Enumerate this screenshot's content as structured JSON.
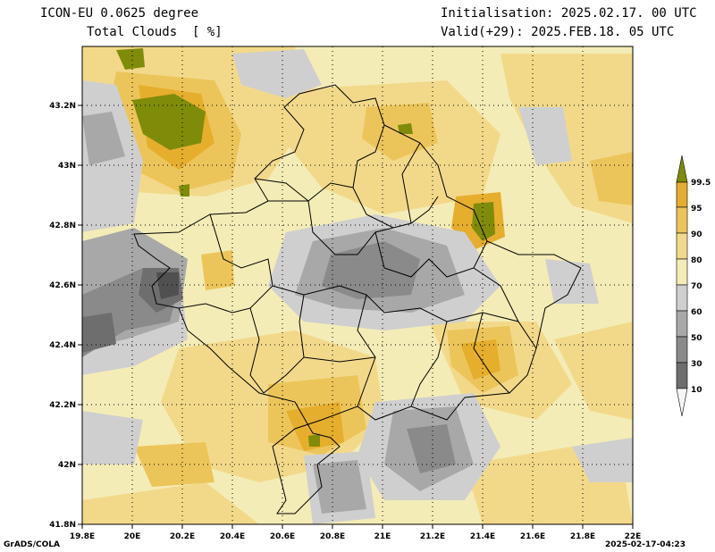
{
  "header": {
    "model": "ICON-EU 0.0625 degree",
    "field": "Total Clouds  [ %]",
    "init": "Initialisation: 2025.02.17. 00 UTC",
    "valid": "Valid(+29): 2025.FEB.18. 05 UTC"
  },
  "axes": {
    "x_ticks": [
      "19.8E",
      "20E",
      "20.2E",
      "20.4E",
      "20.6E",
      "20.8E",
      "21E",
      "21.2E",
      "21.4E",
      "21.6E",
      "21.8E",
      "22E"
    ],
    "y_ticks": [
      "43.2N",
      "43N",
      "42.8N",
      "42.6N",
      "42.4N",
      "42.2N",
      "42N",
      "41.8N"
    ],
    "lon_range": [
      19.8,
      22.0
    ],
    "lat_range": [
      41.8,
      43.4
    ]
  },
  "legend": {
    "labels": [
      "99.5",
      "95",
      "90",
      "80",
      "70",
      "60",
      "50",
      "30",
      "10"
    ],
    "colors": [
      "#7f8c0a",
      "#e5ae2c",
      "#ecc55a",
      "#f2d98a",
      "#f4ecb6",
      "#cfcfcf",
      "#a8a8a8",
      "#8a8a8a",
      "#6e6e6e",
      "#505050",
      "#f5f5f5"
    ]
  },
  "footer": {
    "left": "GrADS/COLA",
    "right": "2025-02-17-04:23"
  }
}
